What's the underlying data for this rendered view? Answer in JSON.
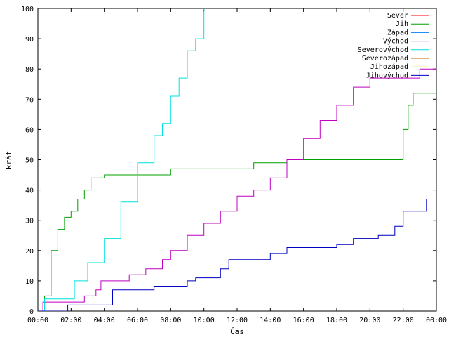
{
  "chart_data": {
    "type": "line",
    "xlabel": "Čas",
    "ylabel": "krát",
    "ylim": [
      0,
      100
    ],
    "xlim": [
      0,
      24
    ],
    "x_ticks": [
      "00:00",
      "02:00",
      "04:00",
      "06:00",
      "08:00",
      "10:00",
      "12:00",
      "14:00",
      "16:00",
      "18:00",
      "20:00",
      "22:00",
      "00:00"
    ],
    "y_ticks": [
      "0",
      "10",
      "20",
      "30",
      "40",
      "50",
      "60",
      "70",
      "80",
      "90",
      "100"
    ],
    "legend_position": "top-right",
    "grid": false,
    "series": [
      {
        "name": "Sever",
        "color": "#ff0000",
        "x": [],
        "y": []
      },
      {
        "name": "Jih",
        "color": "#00a000",
        "x": [
          0,
          0.4,
          0.8,
          1.2,
          1.6,
          2.0,
          2.4,
          2.8,
          3.2,
          3.6,
          4.0,
          8.0,
          13.0,
          15.0,
          21.0,
          21.6,
          22.0,
          22.3,
          22.6,
          24
        ],
        "y": [
          0,
          5,
          20,
          27,
          31,
          33,
          37,
          40,
          44,
          44,
          45,
          47,
          49,
          50,
          50,
          50,
          60,
          68,
          72,
          72
        ]
      },
      {
        "name": "Západ",
        "color": "#0080ff",
        "x": [],
        "y": []
      },
      {
        "name": "Východ",
        "color": "#c000c0",
        "x": [
          0,
          0.3,
          1.0,
          2.8,
          3.5,
          3.8,
          4.0,
          5.5,
          6.5,
          7.5,
          8.0,
          9.0,
          10.0,
          11.0,
          12.0,
          13.0,
          14.0,
          15.0,
          16.0,
          17.0,
          18.0,
          19.0,
          20.0,
          22.0,
          23.0,
          24
        ],
        "y": [
          0,
          3,
          3,
          5,
          7,
          10,
          10,
          12,
          14,
          17,
          20,
          25,
          29,
          33,
          38,
          40,
          44,
          50,
          57,
          63,
          68,
          74,
          77,
          77,
          80,
          80
        ]
      },
      {
        "name": "Severovýchod",
        "color": "#00e0e0",
        "x": [
          0,
          0.4,
          1.5,
          2.2,
          3.0,
          3.5,
          4.0,
          5.0,
          6.0,
          7.0,
          7.5,
          8.0,
          8.5,
          9.0,
          9.5,
          10.0
        ],
        "y": [
          0,
          4,
          4,
          10,
          16,
          16,
          24,
          36,
          49,
          58,
          62,
          71,
          77,
          86,
          90,
          100
        ]
      },
      {
        "name": "Severozápad",
        "color": "#c06000",
        "x": [],
        "y": []
      },
      {
        "name": "Jihozápad",
        "color": "#f0e000",
        "x": [],
        "y": []
      },
      {
        "name": "Jihovýchod",
        "color": "#0000c0",
        "x": [
          0,
          1.6,
          1.8,
          4.2,
          4.5,
          6.0,
          7.0,
          9.0,
          9.5,
          10.8,
          11.0,
          11.5,
          14.0,
          15.0,
          18.0,
          19.0,
          20.5,
          21.5,
          22.0,
          23.2,
          23.4,
          24
        ],
        "y": [
          0,
          0,
          2,
          2,
          7,
          7,
          8,
          10,
          11,
          11,
          14,
          17,
          19,
          21,
          22,
          24,
          25,
          28,
          33,
          33,
          37,
          37
        ]
      }
    ]
  }
}
